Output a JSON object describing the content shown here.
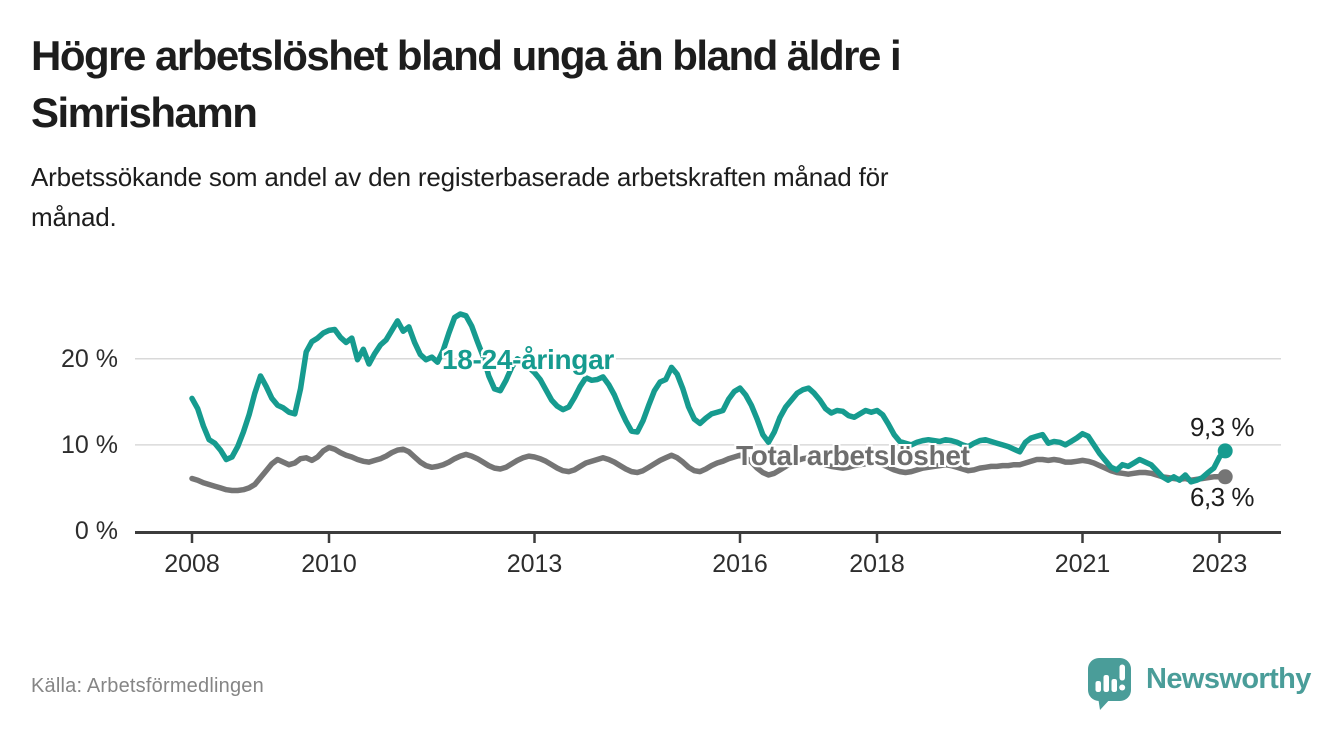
{
  "header": {
    "title_line1": "Högre arbetslöshet bland unga än bland äldre i",
    "title_line2": "Simrishamn",
    "subtitle_line1": "Arbetssökande som andel av den registerbaserade arbetskraften månad för",
    "subtitle_line2": "månad."
  },
  "footer": {
    "source": "Källa: Arbetsförmedlingen",
    "brand": "Newsworthy"
  },
  "colors": {
    "young_line": "#169b8f",
    "total_line": "#757575",
    "grid": "#d9d9d9",
    "axis": "#3c3c3c",
    "brand_teal": "#4a9d99",
    "text_dark": "#1d1d1d"
  },
  "chart_data": {
    "type": "line",
    "unit": "%",
    "frequency": "monthly",
    "start": "2008-01",
    "end": "2023-02",
    "grid": "horizontal",
    "ylim": [
      0,
      26.5
    ],
    "x_ticks": [
      2008,
      2010,
      2013,
      2016,
      2018,
      2021,
      2023
    ],
    "y_ticks": [
      {
        "value": 0,
        "label": "0 %"
      },
      {
        "value": 10,
        "label": "10 %"
      },
      {
        "value": 20,
        "label": "20 %"
      }
    ],
    "series": [
      {
        "name": "18-24-åringar",
        "color": "#169b8f",
        "end_label": "9,3 %",
        "end_value": 9.3,
        "values": [
          15.4,
          14.2,
          12.2,
          10.6,
          10.2,
          9.4,
          8.3,
          8.6,
          9.8,
          11.5,
          13.5,
          16.0,
          18.0,
          16.8,
          15.4,
          14.6,
          14.3,
          13.8,
          13.6,
          16.5,
          20.8,
          22.0,
          22.4,
          23.0,
          23.3,
          23.4,
          22.5,
          21.9,
          22.4,
          19.9,
          21.1,
          19.4,
          20.6,
          21.6,
          22.2,
          23.3,
          24.4,
          23.2,
          23.7,
          21.9,
          20.5,
          19.9,
          20.2,
          19.6,
          21.0,
          23.0,
          24.8,
          25.2,
          25.0,
          23.8,
          22.0,
          20.3,
          18.0,
          16.5,
          16.3,
          17.5,
          19.0,
          20.0,
          19.6,
          19.0,
          18.4,
          17.6,
          16.4,
          15.2,
          14.5,
          14.1,
          14.4,
          15.5,
          16.8,
          17.8,
          17.5,
          17.6,
          17.9,
          17.0,
          15.8,
          14.2,
          12.8,
          11.6,
          11.5,
          12.8,
          14.6,
          16.3,
          17.3,
          17.6,
          19.0,
          18.2,
          16.5,
          14.4,
          13.0,
          12.5,
          13.1,
          13.6,
          13.8,
          14.0,
          15.3,
          16.2,
          16.6,
          15.8,
          14.6,
          13.0,
          11.2,
          10.3,
          11.5,
          13.2,
          14.4,
          15.2,
          16.0,
          16.4,
          16.6,
          16.0,
          15.2,
          14.2,
          13.7,
          14.0,
          13.9,
          13.4,
          13.2,
          13.6,
          14.0,
          13.8,
          14.0,
          13.5,
          12.4,
          11.2,
          10.4,
          10.2,
          10.0,
          10.3,
          10.5,
          10.6,
          10.5,
          10.4,
          10.6,
          10.5,
          10.3,
          10.0,
          9.8,
          10.2,
          10.5,
          10.6,
          10.4,
          10.2,
          10.0,
          9.8,
          9.5,
          9.2,
          10.3,
          10.8,
          11.0,
          11.2,
          10.2,
          10.4,
          10.3,
          10.0,
          10.4,
          10.8,
          11.3,
          11.0,
          10.0,
          9.0,
          8.2,
          7.4,
          7.1,
          7.7,
          7.5,
          7.9,
          8.3,
          8.0,
          7.7,
          7.0,
          6.3,
          5.9,
          6.3,
          5.9,
          6.5,
          5.7,
          5.9,
          6.2,
          6.8,
          7.3,
          8.6,
          9.3
        ]
      },
      {
        "name": "Total arbetslöshet",
        "color": "#757575",
        "end_label": "6,3 %",
        "end_value": 6.3,
        "values": [
          6.1,
          5.9,
          5.6,
          5.4,
          5.2,
          5.0,
          4.8,
          4.7,
          4.7,
          4.8,
          5.0,
          5.4,
          6.2,
          7.0,
          7.8,
          8.3,
          8.0,
          7.7,
          7.9,
          8.4,
          8.5,
          8.2,
          8.6,
          9.3,
          9.7,
          9.5,
          9.1,
          8.8,
          8.6,
          8.3,
          8.1,
          8.0,
          8.2,
          8.4,
          8.7,
          9.1,
          9.4,
          9.5,
          9.2,
          8.6,
          8.0,
          7.6,
          7.4,
          7.5,
          7.7,
          8.0,
          8.4,
          8.7,
          8.9,
          8.7,
          8.4,
          8.0,
          7.6,
          7.3,
          7.2,
          7.4,
          7.8,
          8.2,
          8.5,
          8.7,
          8.6,
          8.4,
          8.1,
          7.7,
          7.3,
          7.0,
          6.9,
          7.1,
          7.5,
          7.9,
          8.1,
          8.3,
          8.5,
          8.3,
          8.0,
          7.6,
          7.2,
          6.9,
          6.8,
          7.0,
          7.4,
          7.8,
          8.2,
          8.5,
          8.8,
          8.5,
          8.0,
          7.4,
          7.0,
          6.9,
          7.2,
          7.6,
          7.9,
          8.1,
          8.4,
          8.6,
          8.8,
          8.5,
          8.0,
          7.3,
          6.8,
          6.5,
          6.7,
          7.1,
          7.5,
          7.9,
          8.2,
          8.4,
          8.5,
          8.3,
          8.0,
          7.7,
          7.5,
          7.4,
          7.3,
          7.4,
          7.6,
          7.7,
          7.8,
          7.9,
          7.9,
          7.7,
          7.4,
          7.1,
          6.9,
          6.8,
          6.9,
          7.1,
          7.3,
          7.4,
          7.5,
          7.6,
          7.7,
          7.6,
          7.4,
          7.2,
          7.0,
          7.1,
          7.3,
          7.4,
          7.5,
          7.5,
          7.6,
          7.6,
          7.7,
          7.7,
          7.9,
          8.1,
          8.3,
          8.3,
          8.2,
          8.3,
          8.2,
          8.0,
          8.0,
          8.1,
          8.2,
          8.1,
          7.9,
          7.6,
          7.3,
          7.0,
          6.8,
          6.7,
          6.6,
          6.7,
          6.8,
          6.8,
          6.7,
          6.5,
          6.3,
          6.2,
          6.1,
          6.0,
          6.1,
          5.9,
          6.0,
          6.1,
          6.2,
          6.3,
          6.3,
          6.3
        ]
      }
    ]
  }
}
